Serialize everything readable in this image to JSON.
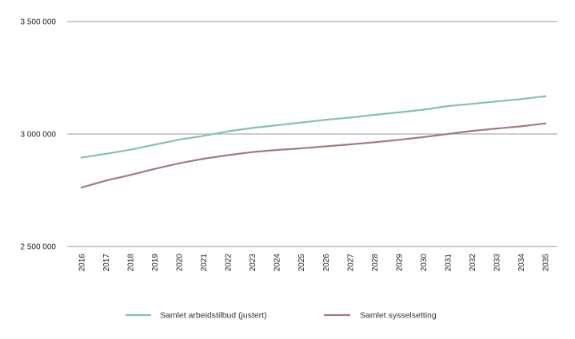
{
  "chart_data": {
    "type": "line",
    "title": "",
    "xlabel": "",
    "ylabel": "",
    "categories": [
      "2016",
      "2017",
      "2018",
      "2019",
      "2020",
      "2021",
      "2022",
      "2023",
      "2024",
      "2025",
      "2026",
      "2027",
      "2028",
      "2029",
      "2030",
      "2031",
      "2032",
      "2033",
      "2034",
      "2035"
    ],
    "ylim": [
      2500000,
      3500000
    ],
    "yticks": [
      {
        "value": 2500000,
        "label": "2 500 000"
      },
      {
        "value": 3000000,
        "label": "3 000 000"
      },
      {
        "value": 3500000,
        "label": "3 500 000"
      }
    ],
    "grid": "horizontal",
    "legend_position": "bottom",
    "series": [
      {
        "name": "Samlet arbeidstilbud (justert)",
        "color": "#82c4a8",
        "values": [
          2895000,
          2912000,
          2930000,
          2953000,
          2975000,
          2992000,
          3012000,
          3027000,
          3039000,
          3051000,
          3063000,
          3073000,
          3085000,
          3096000,
          3108000,
          3124000,
          3134000,
          3145000,
          3155000,
          3168000
        ]
      },
      {
        "name": "Samlet sysselsetting",
        "color": "#a87a7a",
        "values": [
          2762000,
          2793000,
          2818000,
          2845000,
          2870000,
          2890000,
          2906000,
          2920000,
          2929000,
          2936000,
          2945000,
          2954000,
          2963000,
          2974000,
          2986000,
          3000000,
          3014000,
          3024000,
          3034000,
          3047000
        ]
      }
    ]
  }
}
